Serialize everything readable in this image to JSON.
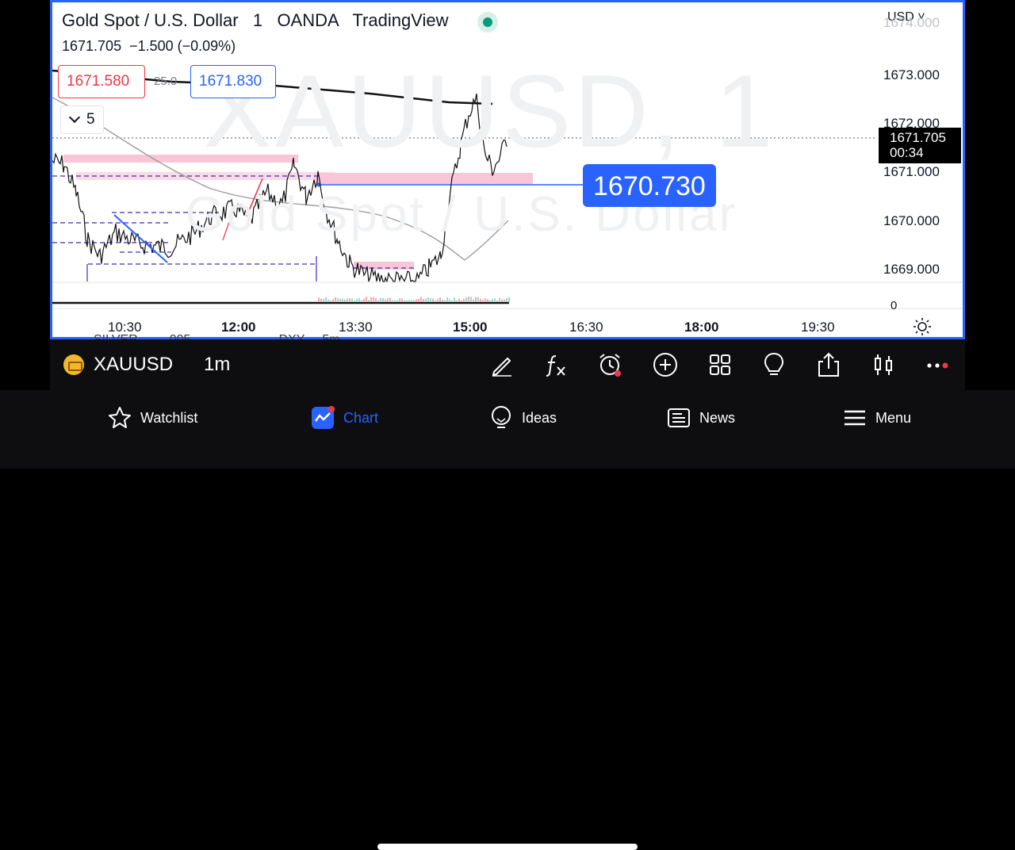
{
  "chart_header": {
    "title": "Gold Spot / U.S. Dollar   1   OANDA   TradingView",
    "price_line": "1671.705  −1.500 (−0.09%)",
    "currency": "USD"
  },
  "watermark": {
    "symbol": "XAUUSD, 1",
    "description": "Gold Spot / U.S. Dollar"
  },
  "quote": {
    "sell_price": "1671.580",
    "spread": "25.0",
    "buy_price": "1671.830"
  },
  "indicators_toggle": {
    "count": "5"
  },
  "price_axis": {
    "ticks": [
      "1674.000",
      "1673.000",
      "1672.000",
      "1671.000",
      "1670.000",
      "1669.000"
    ],
    "volume_zero": "0",
    "last_price": "1671.705",
    "countdown": "00:34"
  },
  "annotation": {
    "label": "1670.730"
  },
  "time_axis": {
    "ticks": [
      "10:30",
      "12:00",
      "13:30",
      "15:00",
      "16:30",
      "18:00",
      "19:30"
    ]
  },
  "underlying_list_text": "SILVER         005                         DXY     5m",
  "symbol_bar": {
    "symbol": "XAUUSD",
    "interval": "1m"
  },
  "bottom_tabs": [
    {
      "label": "Watchlist",
      "icon": "star-icon"
    },
    {
      "label": "Chart",
      "icon": "chart-icon",
      "active": true
    },
    {
      "label": "Ideas",
      "icon": "lightbulb-icon"
    },
    {
      "label": "News",
      "icon": "news-icon"
    },
    {
      "label": "Menu",
      "icon": "hamburger-icon"
    }
  ],
  "colors": {
    "accent": "#2962ff",
    "up": "#089981",
    "down": "#f23645",
    "zone": "#f8bbd0"
  }
}
